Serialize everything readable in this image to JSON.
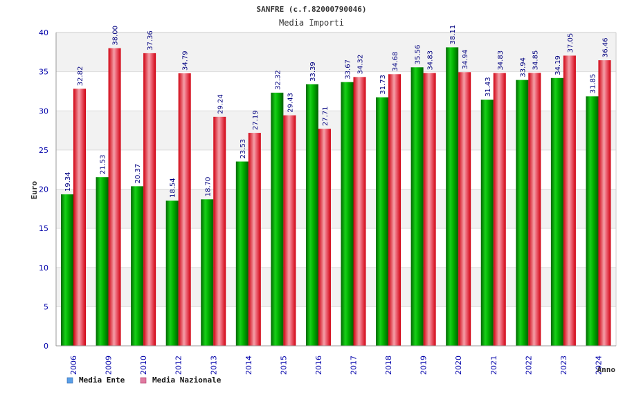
{
  "chart_data": {
    "type": "bar",
    "title": "SANFRE (c.f.82000790046)",
    "subtitle": "Media Importi",
    "ylabel": "Euro",
    "xlabel": "Anno",
    "ylim": [
      0,
      40
    ],
    "yticks": [
      "0",
      "5",
      "10",
      "15",
      "20",
      "25",
      "30",
      "35",
      "40"
    ],
    "grid": true,
    "legend_position": "bottom-left",
    "categories": [
      "2006",
      "2009",
      "2010",
      "2012",
      "2013",
      "2014",
      "2015",
      "2016",
      "2017",
      "2018",
      "2019",
      "2020",
      "2021",
      "2022",
      "2023",
      "2024"
    ],
    "series": [
      {
        "name": "Media Ente",
        "color": "#00a000",
        "legend_color": "#5aa0e8",
        "values": [
          19.34,
          21.53,
          20.37,
          18.54,
          18.7,
          23.53,
          32.32,
          33.39,
          33.67,
          31.73,
          35.56,
          38.11,
          31.43,
          33.94,
          34.19,
          31.85
        ],
        "labels": [
          "19.34",
          "21.53",
          "20.37",
          "18.54",
          "18.70",
          "23.53",
          "32.32",
          "33.39",
          "33.67",
          "31.73",
          "35.56",
          "38.11",
          "31.43",
          "33.94",
          "34.19",
          "31.85"
        ]
      },
      {
        "name": "Media Nazionale",
        "color": "#e01020",
        "legend_color": "#e07aa0",
        "values": [
          32.82,
          38.0,
          37.36,
          34.79,
          29.24,
          27.19,
          29.43,
          27.71,
          34.32,
          34.68,
          34.83,
          34.94,
          34.83,
          34.85,
          37.05,
          36.46
        ],
        "labels": [
          "32.82",
          "38.00",
          "37.36",
          "34.79",
          "29.24",
          "27.19",
          "29.43",
          "27.71",
          "34.32",
          "34.68",
          "34.83",
          "34.94",
          "34.83",
          "34.85",
          "37.05",
          "36.46"
        ]
      }
    ]
  }
}
